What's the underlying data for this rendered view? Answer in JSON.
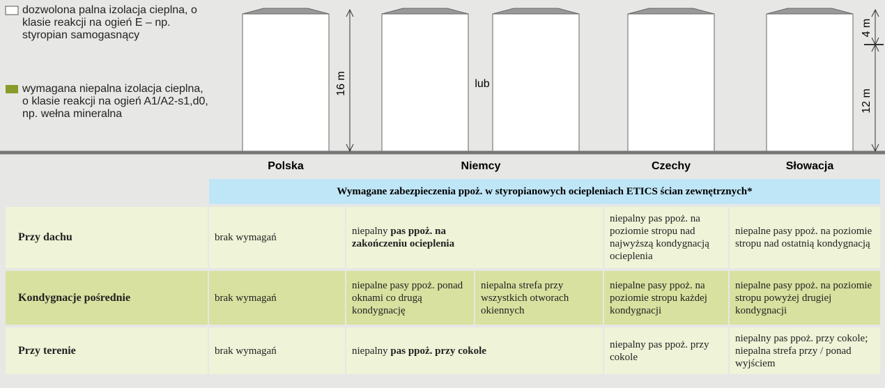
{
  "legend": [
    {
      "text": "dozwolona palna izolacja cieplna, o klasie reakcji na ogień E – np. styropian samogasnący"
    },
    {
      "text": "wymagana niepalna izolacja cieplna, o klasie reakcji na ogień A1/A2-s1,d0, np. wełna mineralna"
    }
  ],
  "dimensions": {
    "total": "16 m",
    "or": "lub",
    "top": "4 m",
    "lower": "12 m"
  },
  "countries": [
    "Polska",
    "Niemcy",
    "Czechy",
    "Słowacja"
  ],
  "table": {
    "header": "Wymagane zabezpieczenia ppoż. w styropianowych ociepleniach ETICS ścian zewnętrznych*",
    "rows": [
      {
        "label": "Przy dachu",
        "cells": [
          {
            "text": "brak wymagań"
          },
          {
            "plain": "niepalny",
            "bold": "pas ppoż. na zakończeniu ocieplenia"
          },
          {
            "text": "niepalny pas ppoż. na poziomie stropu nad najwyższą kondygnacją ocieplenia"
          },
          {
            "text": "niepalne pasy ppoż. na poziomie stropu nad ostatnią kondygnacją"
          }
        ]
      },
      {
        "label": "Kondygnacje pośrednie",
        "cells": [
          {
            "text": "brak wymagań"
          },
          {
            "text": "niepalne pasy ppoż. ponad oknami co drugą kondygnację"
          },
          {
            "text": "niepalna strefa przy wszystkich otworach okiennych"
          },
          {
            "text": "niepalne pasy ppoż. na poziomie stropu każdej kondygnacji"
          },
          {
            "text": "niepalne pasy ppoż. na poziomie stropu powyżej drugiej kondygnacji"
          }
        ]
      },
      {
        "label": "Przy terenie",
        "cells": [
          {
            "text": "brak wymagań"
          },
          {
            "plain": "niepalny",
            "bold": "pas ppoż. przy cokole"
          },
          {
            "text": "niepalny pas ppoż. przy cokole"
          },
          {
            "text": "niepalny pas ppoż. przy cokole; niepalna strefa przy / ponad wyjściem"
          }
        ]
      }
    ]
  }
}
